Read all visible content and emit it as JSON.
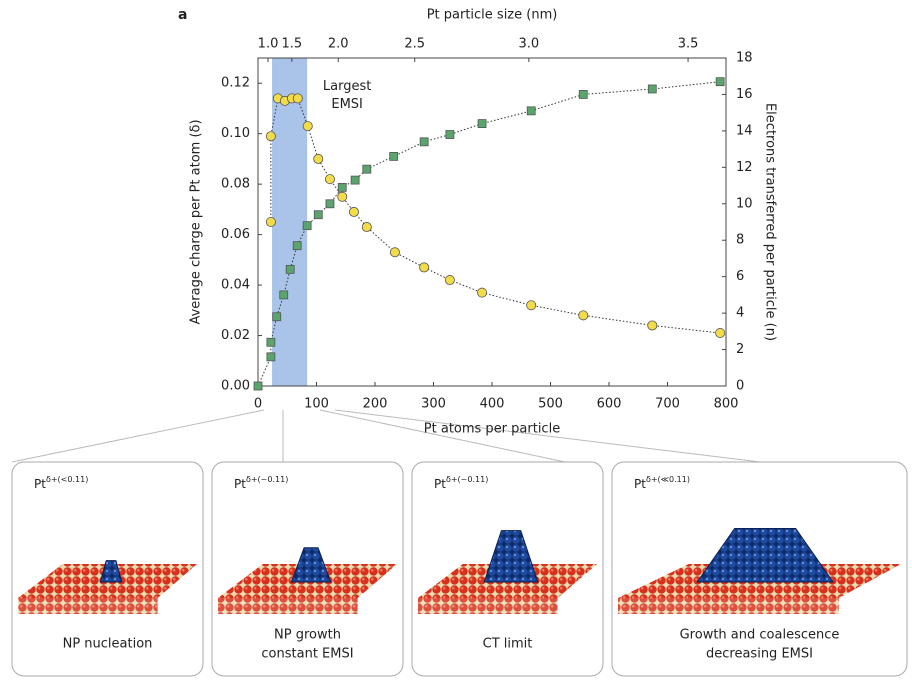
{
  "figure_label": "a",
  "chart_data": {
    "type": "scatter",
    "xlabel": "Pt atoms per particle",
    "ylabel": "Average charge per Pt atom (δ)",
    "y2label": "Electrons transferred per particle (n)",
    "x2label": "Pt particle size (nm)",
    "xlim": [
      0,
      800
    ],
    "xticks": [
      0,
      100,
      200,
      300,
      400,
      500,
      600,
      700,
      800
    ],
    "ylim": [
      0,
      0.13
    ],
    "yticks": [
      {
        "value": 0,
        "label": "0.00"
      },
      {
        "value": 0.02,
        "label": "0.02"
      },
      {
        "value": 0.04,
        "label": "0.04"
      },
      {
        "value": 0.06,
        "label": "0.06"
      },
      {
        "value": 0.08,
        "label": "0.08"
      },
      {
        "value": 0.1,
        "label": "0.10"
      },
      {
        "value": 0.12,
        "label": "0.12"
      }
    ],
    "y2lim": [
      0,
      18
    ],
    "y2ticks": [
      0,
      2,
      4,
      6,
      8,
      10,
      12,
      14,
      16,
      18
    ],
    "x2lim": [
      0,
      3.6
    ],
    "x2scale": "cube",
    "x2ticks": [
      {
        "value": 1,
        "label": "1.0"
      },
      1.5,
      {
        "value": 2,
        "label": "2.0"
      },
      2.5,
      {
        "value": 3,
        "label": "3.0"
      },
      3.5
    ],
    "highlight_range": [
      24,
      84
    ],
    "highlight_color": "#a9c4e8",
    "annotation": "Largest\nEMSI",
    "series": [
      {
        "color": "#f2dc4a",
        "marker": "circle",
        "x": [
          22,
          22,
          34,
          46,
          58,
          68,
          85,
          103,
          123,
          144,
          164,
          186,
          234,
          284,
          328,
          383,
          467,
          556,
          674,
          790
        ],
        "values": [
          0.065,
          0.099,
          0.114,
          0.113,
          0.114,
          0.114,
          0.103,
          0.09,
          0.082,
          0.075,
          0.069,
          0.063,
          0.053,
          0.047,
          0.042,
          0.037,
          0.032,
          0.028,
          0.024,
          0.021
        ]
      },
      {
        "color": "#5aa46e",
        "marker": "square",
        "axis": "y2",
        "x": [
          0,
          22,
          22,
          32,
          44,
          55,
          67,
          84,
          103,
          123,
          144,
          166,
          186,
          232,
          284,
          328,
          383,
          467,
          556,
          674,
          790
        ],
        "values": [
          0,
          1.6,
          2.4,
          3.8,
          5.0,
          6.4,
          7.7,
          8.8,
          9.4,
          10.0,
          10.9,
          11.3,
          11.9,
          12.6,
          13.4,
          13.8,
          14.4,
          15.1,
          16.0,
          16.3,
          16.7
        ]
      }
    ]
  },
  "panels": [
    {
      "label": {
        "base": "Pt",
        "sup": "δ+(<0.11)"
      },
      "caption": [
        "NP nucleation"
      ]
    },
    {
      "label": {
        "base": "Pt",
        "sup": "δ+(~0.11)"
      },
      "caption": [
        "NP growth",
        "constant EMSI"
      ]
    },
    {
      "label": {
        "base": "Pt",
        "sup": "δ+(~0.11)"
      },
      "caption": [
        "CT limit"
      ]
    },
    {
      "label": {
        "base": "Pt",
        "sup": "δ+(≪0.11)"
      },
      "caption": [
        "Growth and coalescence",
        "decreasing EMSI"
      ]
    }
  ]
}
